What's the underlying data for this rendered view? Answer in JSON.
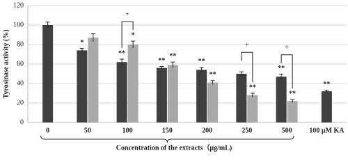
{
  "chart_data": {
    "type": "bar",
    "y_label": "Tyrosinase activity (%)",
    "x_label": "Concentration of the extracts（μg/mL)",
    "categories": [
      "0",
      "50",
      "100",
      "150",
      "200",
      "250",
      "500",
      "100 μM KA"
    ],
    "series": [
      {
        "color": "#3f3f3f",
        "values": [
          100,
          74,
          62,
          56,
          54,
          50,
          47,
          32
        ],
        "errors": [
          3,
          2,
          3,
          1.5,
          2.5,
          2,
          2.5,
          1
        ],
        "annotations": [
          null,
          "*",
          "**",
          "**",
          "**",
          null,
          "**",
          "**"
        ]
      },
      {
        "color": "#a9a9a9",
        "values": [
          null,
          87,
          80,
          59,
          41,
          28,
          22,
          null
        ],
        "errors": [
          null,
          4,
          3.5,
          3,
          2,
          2,
          1.5,
          null
        ],
        "annotations": [
          null,
          null,
          "*",
          "**",
          "**",
          "**",
          "**",
          null
        ]
      }
    ],
    "brackets": [
      {
        "category": "100",
        "label": "+"
      },
      {
        "category": "250",
        "label": "+"
      },
      {
        "category": "500",
        "label": "+"
      }
    ],
    "brace_span": [
      "0",
      "500"
    ],
    "ylim": [
      0,
      120
    ],
    "yticks": [
      0,
      20,
      40,
      60,
      80,
      100,
      120
    ],
    "grid": true
  }
}
